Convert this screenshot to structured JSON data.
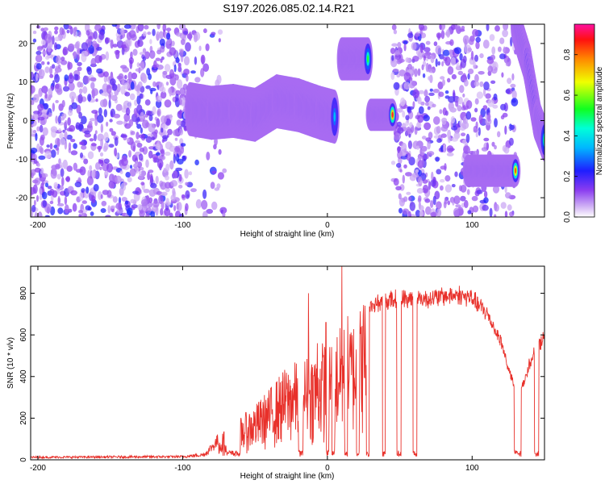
{
  "chart_data": [
    {
      "type": "heatmap",
      "title": "S197.2026.085.02.14.R21",
      "xlabel": "Height of straight line (km)",
      "ylabel": "Frequency (Hz)",
      "xlim": [
        -205,
        150
      ],
      "ylim": [
        -25,
        25
      ],
      "xticks": [
        -200,
        -100,
        0,
        100
      ],
      "xtick_labels": [
        "-200",
        "-100",
        "0",
        "100"
      ],
      "yticks": [
        -20,
        -10,
        0,
        10,
        20
      ],
      "ytick_labels": [
        "-20",
        "-10",
        "0",
        "10",
        "20"
      ],
      "colorbar": {
        "label": "Normalized spectral amplitude",
        "range": [
          0.0,
          0.95
        ],
        "ticks": [
          0.0,
          0.2,
          0.4,
          0.6,
          0.8
        ],
        "tick_labels": [
          "0.0",
          "0.2",
          "0.4",
          "0.6",
          "0.8"
        ]
      },
      "noise_regions": [
        {
          "x0": -205,
          "x1": -95,
          "density": 1.0
        },
        {
          "x0": -95,
          "x1": -70,
          "density": 0.25
        },
        {
          "x0": 45,
          "x1": 95,
          "density": 0.9
        },
        {
          "x0": 95,
          "x1": 130,
          "density": 0.6
        }
      ],
      "ridges": [
        {
          "x": [
            -95,
            -80,
            -65,
            -50,
            -35,
            -20,
            -5,
            5
          ],
          "y": [
            3,
            2,
            2.5,
            1.5,
            5,
            4,
            2,
            1
          ],
          "amplitude": 0.45,
          "width": 2.5
        },
        {
          "x": [
            10,
            28
          ],
          "y": [
            16,
            16
          ],
          "amplitude": 0.7,
          "width": 2
        },
        {
          "x": [
            30,
            45
          ],
          "y": [
            1.5,
            1.5
          ],
          "amplitude": 0.9,
          "width": 1.5
        },
        {
          "x": [
            97,
            130
          ],
          "y": [
            -13,
            -13
          ],
          "amplitude": 0.95,
          "width": 1.5
        },
        {
          "x": [
            130,
            138,
            145,
            150
          ],
          "y": [
            25,
            15,
            0,
            -5
          ],
          "amplitude": 0.5,
          "width": 2
        }
      ]
    },
    {
      "type": "line",
      "xlabel": "Height of straight line (km)",
      "ylabel": "SNR (10 * v/v)",
      "xlim": [
        -205,
        150
      ],
      "ylim": [
        0,
        930
      ],
      "xticks": [
        -200,
        -100,
        0,
        100
      ],
      "xtick_labels": [
        "-200",
        "-100",
        "0",
        "100"
      ],
      "yticks": [
        0,
        200,
        400,
        600,
        800
      ],
      "ytick_labels": [
        "0",
        "200",
        "400",
        "600",
        "800"
      ],
      "color": "#e8302a",
      "envelope_x": [
        -205,
        -100,
        -85,
        -80,
        -70,
        -60,
        -50,
        -40,
        -30,
        -20,
        -10,
        0,
        10,
        20,
        30,
        40,
        50,
        60,
        70,
        80,
        90,
        100,
        110,
        120,
        125,
        130,
        135,
        140,
        145,
        150
      ],
      "envelope_y": [
        12,
        15,
        25,
        60,
        130,
        180,
        230,
        300,
        380,
        420,
        450,
        520,
        560,
        600,
        760,
        780,
        790,
        790,
        790,
        800,
        810,
        790,
        720,
        580,
        450,
        340,
        360,
        480,
        560,
        600
      ],
      "dropouts": [
        [
          -70,
          -60
        ],
        [
          -20,
          -17
        ],
        [
          -1,
          1
        ],
        [
          3,
          5
        ],
        [
          12,
          14
        ],
        [
          20,
          22
        ],
        [
          27,
          29
        ],
        [
          38,
          40
        ],
        [
          48,
          51
        ],
        [
          59,
          62
        ],
        [
          129,
          134
        ],
        [
          143,
          146
        ]
      ],
      "spikes": [
        [
          -13,
          800
        ],
        [
          10,
          930
        ],
        [
          -1,
          660
        ],
        [
          14,
          690
        ],
        [
          -7,
          560
        ],
        [
          20,
          530
        ]
      ]
    }
  ]
}
